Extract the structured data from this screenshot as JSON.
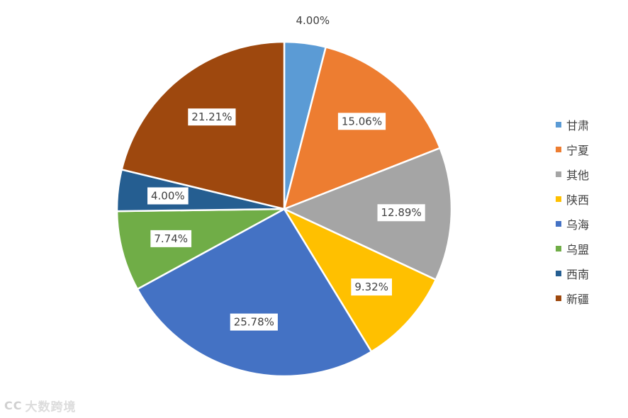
{
  "chart_data": {
    "type": "pie",
    "categories": [
      "甘肃",
      "宁夏",
      "其他",
      "陕西",
      "乌海",
      "乌盟",
      "西南",
      "新疆"
    ],
    "values": [
      4.0,
      15.06,
      12.89,
      9.32,
      25.78,
      7.74,
      4.0,
      21.21
    ],
    "labels": [
      "4.00%",
      "15.06%",
      "12.89%",
      "9.32%",
      "25.78%",
      "7.74%",
      "4.00%",
      "21.21%"
    ],
    "colors": [
      "#5B9BD5",
      "#ED7D31",
      "#A5A5A5",
      "#FFC000",
      "#4472C4",
      "#70AD47",
      "#255E91",
      "#9E480E"
    ],
    "legend_position": "right",
    "start_angle": "top, clockwise"
  },
  "legend": {
    "items": [
      {
        "label": "甘肃",
        "color": "#5B9BD5"
      },
      {
        "label": "宁夏",
        "color": "#ED7D31"
      },
      {
        "label": "其他",
        "color": "#A5A5A5"
      },
      {
        "label": "陕西",
        "color": "#FFC000"
      },
      {
        "label": "乌海",
        "color": "#4472C4"
      },
      {
        "label": "乌盟",
        "color": "#70AD47"
      },
      {
        "label": "西南",
        "color": "#255E91"
      },
      {
        "label": "新疆",
        "color": "#9E480E"
      }
    ]
  },
  "watermark": {
    "logo": "CC",
    "text": "大数跨境"
  }
}
